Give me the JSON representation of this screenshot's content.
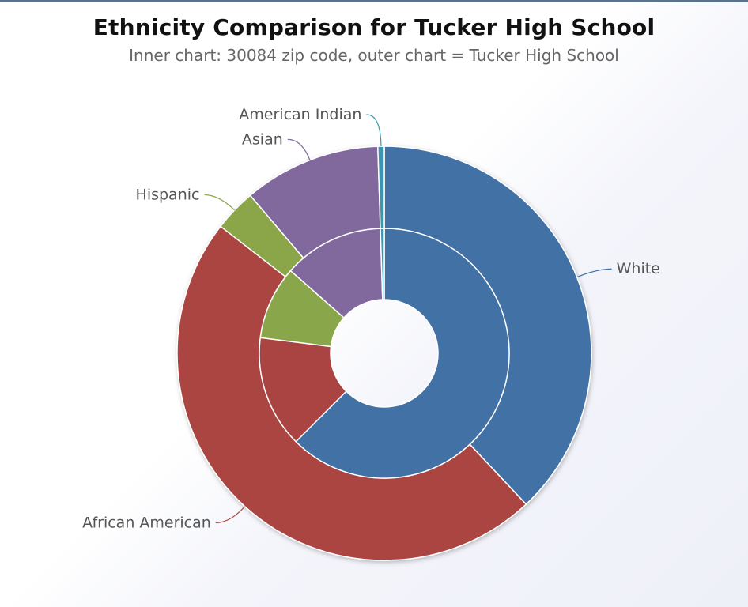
{
  "chart_data": {
    "type": "pie",
    "title": "Ethnicity Comparison for Tucker High School",
    "subtitle": "Inner chart: 30084 zip code, outer chart = Tucker High School",
    "categories": [
      "White",
      "African American",
      "Hispanic",
      "Asian",
      "American Indian"
    ],
    "colors": [
      "#4271a5",
      "#aa4442",
      "#8aa64a",
      "#81689d",
      "#3d96ae"
    ],
    "series": [
      {
        "ring": "inner",
        "values": [
          62.5,
          14.5,
          9.5,
          13.0,
          0.5
        ]
      },
      {
        "ring": "outer",
        "values": [
          38.0,
          47.5,
          3.3,
          10.7,
          0.5
        ]
      }
    ],
    "legend": "none"
  }
}
